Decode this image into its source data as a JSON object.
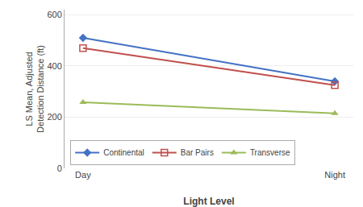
{
  "chart_data": {
    "type": "line",
    "categories": [
      "Day",
      "Night"
    ],
    "series": [
      {
        "name": "Continental",
        "color": "#4472C4",
        "marker": "diamond",
        "values": [
          510,
          340
        ]
      },
      {
        "name": "Bar Pairs",
        "color": "#C0504D",
        "marker": "square-open",
        "values": [
          470,
          325
        ]
      },
      {
        "name": "Transverse",
        "color": "#9BBB59",
        "marker": "triangle-up",
        "values": [
          258,
          215
        ]
      }
    ],
    "xlabel": "Light Level",
    "ylabel": "LS Mean, Adjusted\nDetection Distance (ft)",
    "ylim": [
      0,
      620
    ],
    "yticks": [
      0,
      200,
      400,
      600
    ],
    "grid": true,
    "legend": "lower left"
  }
}
